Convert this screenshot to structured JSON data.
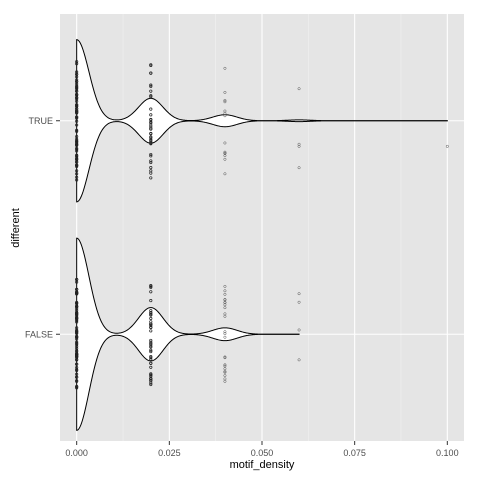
{
  "chart_data": {
    "type": "violin",
    "orientation": "horizontal",
    "xlabel": "motif_density",
    "ylabel": "different",
    "xlim": [
      -0.0045,
      0.1045
    ],
    "x_ticks": [
      0.0,
      0.025,
      0.05,
      0.075,
      0.1
    ],
    "x_tick_labels": [
      "0.000",
      "0.025",
      "0.050",
      "0.075",
      "0.100"
    ],
    "categories": [
      "TRUE",
      "FALSE"
    ],
    "grid": true,
    "panel_background": "#e5e5e5",
    "grid_color": "#ffffff",
    "violin_line_color": "#000000",
    "violin_fill_color": "#ffffff",
    "series": [
      {
        "category": "TRUE",
        "max_x": 0.1,
        "peaks": [
          {
            "x": 0.0,
            "half_width": 0.38
          },
          {
            "x": 0.02,
            "half_width": 0.105
          },
          {
            "x": 0.04,
            "half_width": 0.028
          },
          {
            "x": 0.06,
            "half_width": 0.004
          }
        ],
        "points": [
          {
            "x": 0.0,
            "n": 70,
            "spread": 0.28
          },
          {
            "x": 0.02,
            "n": 36,
            "spread": 0.27
          },
          {
            "x": 0.04,
            "n": 14,
            "spread": 0.25
          },
          {
            "x": 0.06,
            "values_offset": [
              0.22,
              0.12,
              0.11,
              -0.15
            ]
          },
          {
            "x": 0.1,
            "values_offset": [
              0.12
            ]
          }
        ]
      },
      {
        "category": "FALSE",
        "max_x": 0.06,
        "peaks": [
          {
            "x": 0.0,
            "half_width": 0.45
          },
          {
            "x": 0.02,
            "half_width": 0.125
          },
          {
            "x": 0.04,
            "half_width": 0.03
          }
        ],
        "points": [
          {
            "x": 0.0,
            "n": 80,
            "spread": 0.26
          },
          {
            "x": 0.02,
            "n": 44,
            "spread": 0.24
          },
          {
            "x": 0.04,
            "n": 24,
            "spread": 0.27
          },
          {
            "x": 0.06,
            "values_offset": [
              0.12,
              -0.02,
              -0.15,
              -0.19
            ]
          }
        ]
      }
    ]
  }
}
